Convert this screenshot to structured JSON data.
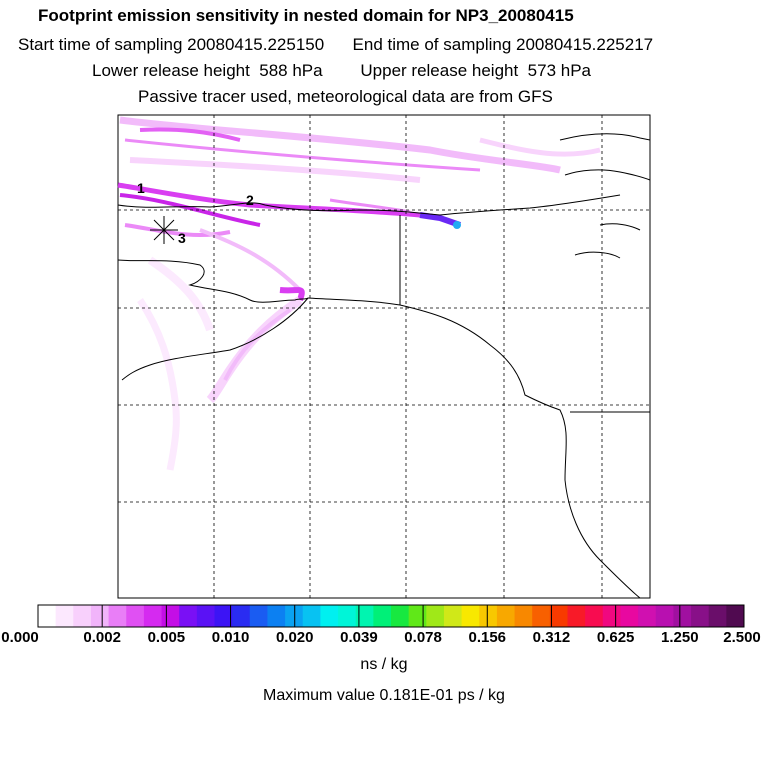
{
  "header": {
    "title": "Footprint emission sensitivity in nested domain for NP3_20080415",
    "line2": "Start time of sampling 20080415.225150      End time of sampling 20080415.225217",
    "line3": "Lower release height  588 hPa        Upper release height  573 hPa",
    "line4": "Passive tracer used, meteorological data are from GFS"
  },
  "markers": {
    "m1": "1",
    "m2": "2",
    "m3": "3"
  },
  "colorbar": {
    "labels": [
      "0.000",
      "0.002",
      "0.005",
      "0.010",
      "0.020",
      "0.039",
      "0.078",
      "0.156",
      "0.312",
      "0.625",
      "1.250",
      "2.500"
    ],
    "colors": [
      "#ffffff",
      "#fce8fe",
      "#f8d0fc",
      "#f1b4fa",
      "#e97ef7",
      "#e050f3",
      "#d52af0",
      "#c40ee6",
      "#7a10f5",
      "#5a12f5",
      "#3c14f5",
      "#2a2cf2",
      "#1a5cf2",
      "#0c80f2",
      "#0aa2f2",
      "#08c2f2",
      "#00f0f0",
      "#00f5d8",
      "#00f5b0",
      "#00f078",
      "#18e840",
      "#60e818",
      "#a0e818",
      "#d0e818",
      "#f8e800",
      "#f8c800",
      "#f8a800",
      "#f88800",
      "#f86000",
      "#f83a00",
      "#f81a28",
      "#f80c50",
      "#f00880",
      "#e808a0",
      "#d010b0",
      "#b810b0",
      "#a010a0",
      "#881088",
      "#6a0e6a",
      "#500a50"
    ],
    "units": "ns / kg"
  },
  "footer": {
    "max_value": "Maximum value  0.181E-01 ps / kg"
  }
}
